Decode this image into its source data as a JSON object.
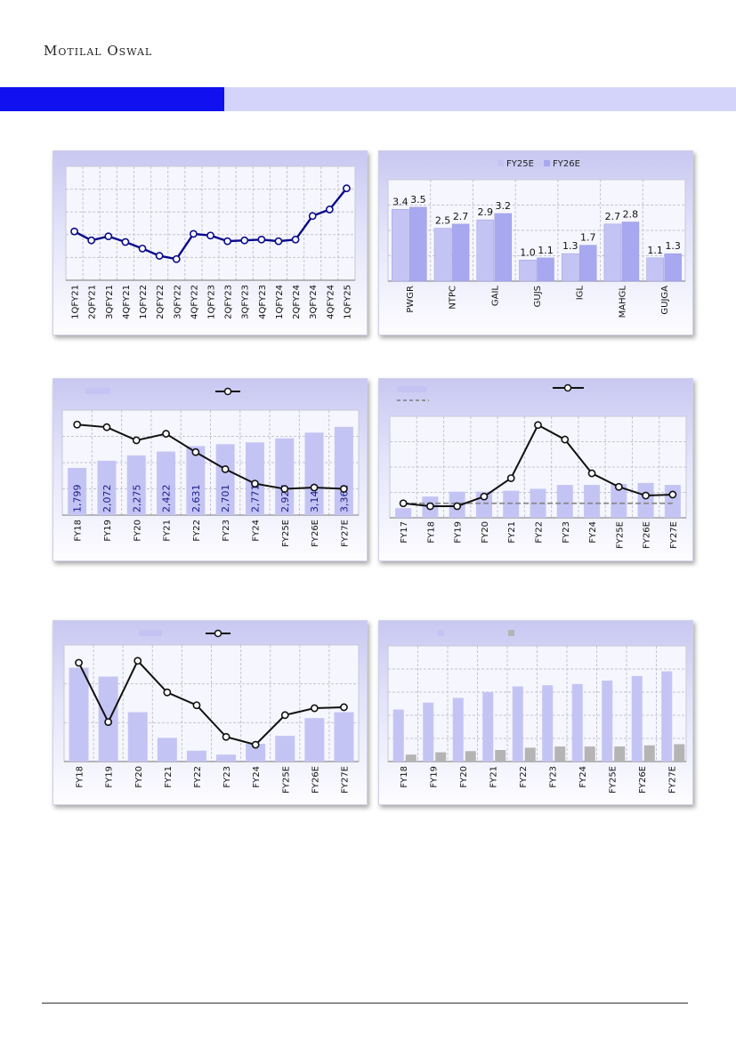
{
  "header": {
    "brand": "Motilal Oswal"
  },
  "colors": {
    "banner_dark": "#1010f0",
    "banner_light": "#d4d4fb",
    "bar": "#c4c4f4",
    "bar_dark": "#a8a8f0",
    "line_blue": "#0a0a8c",
    "line_black": "#111111",
    "bar_grey": "#b4b4b4"
  },
  "chart_data": [
    {
      "type": "line",
      "x": [
        "1QFY21",
        "2QFY21",
        "3QFY21",
        "4QFY21",
        "1QFY22",
        "2QFY22",
        "3QFY22",
        "4QFY22",
        "1QFY23",
        "2QFY23",
        "3QFY23",
        "4QFY23",
        "1QFY24",
        "2QFY24",
        "3QFY24",
        "4QFY24",
        "1QFY25"
      ],
      "values": [
        60,
        49,
        54,
        47,
        39,
        30,
        26,
        57,
        55,
        48,
        49,
        50,
        48,
        50,
        79,
        87,
        113
      ],
      "ylim": [
        0,
        140
      ],
      "grid": true
    },
    {
      "type": "bar",
      "categories": [
        "PWGR",
        "NTPC",
        "GAIL",
        "GUJS",
        "IGL",
        "MAHGL",
        "GUJGA"
      ],
      "series": [
        {
          "name": "FY25E",
          "values": [
            3.4,
            2.5,
            2.9,
            1.0,
            1.3,
            2.7,
            1.1
          ],
          "labels": [
            "3.4",
            "2.5",
            "2.9",
            "1.0",
            "1.3",
            "2.7",
            "1.1"
          ]
        },
        {
          "name": "FY26E",
          "values": [
            3.5,
            2.7,
            3.2,
            1.1,
            1.7,
            2.8,
            1.3
          ],
          "labels": [
            "3.5",
            "2.7",
            "3.2",
            "1.1",
            "1.7",
            "2.8",
            "1.3"
          ]
        }
      ],
      "legend": "top-center",
      "ylim": [
        0,
        4.8
      ],
      "grid": true
    },
    {
      "type": "bar+line",
      "categories": [
        "FY18",
        "FY19",
        "FY20",
        "FY21",
        "FY22",
        "FY23",
        "FY24",
        "FY25E",
        "FY26E",
        "FY27E"
      ],
      "bars": [
        1799,
        2072,
        2275,
        2422,
        2631,
        2701,
        2771,
        2927,
        3143,
        3362
      ],
      "bar_labels": [
        "1,799",
        "2,072",
        "2,275",
        "2,422",
        "2,631",
        "2,701",
        "2,771",
        "2,927",
        "3,143",
        "3,362"
      ],
      "line": [
        3.45,
        3.35,
        2.85,
        3.1,
        2.4,
        1.75,
        1.2,
        1.0,
        1.05,
        1.0
      ],
      "bar_ylim": [
        0,
        4000
      ],
      "line_ylim": [
        0,
        4
      ],
      "legend": "top-left",
      "grid": true
    },
    {
      "type": "bar+line",
      "categories": [
        "FY17",
        "FY18",
        "FY19",
        "FY20",
        "FY21",
        "FY22",
        "FY23",
        "FY24",
        "FY25E",
        "FY26E",
        "FY27E"
      ],
      "bars": [
        10,
        22,
        27,
        27,
        28,
        30,
        34,
        34,
        35,
        36,
        34
      ],
      "line": [
        15,
        12,
        12,
        22,
        41,
        96,
        81,
        46,
        32,
        23,
        24
      ],
      "average": 15,
      "ylim": [
        0,
        105
      ],
      "legend": "top-left",
      "grid": true
    },
    {
      "type": "bar+line",
      "categories": [
        "FY18",
        "FY19",
        "FY20",
        "FY21",
        "FY22",
        "FY23",
        "FY24",
        "FY25E",
        "FY26E",
        "FY27E"
      ],
      "bars": [
        95,
        86,
        50,
        24,
        11,
        7,
        18,
        26,
        44,
        50
      ],
      "line": [
        100,
        40,
        102,
        70,
        57,
        25,
        17,
        47,
        54,
        55
      ],
      "ylim": [
        0,
        118
      ],
      "legend": "top-center",
      "grid": true
    },
    {
      "type": "bar",
      "categories": [
        "FY18",
        "FY19",
        "FY20",
        "FY21",
        "FY22",
        "FY23",
        "FY24",
        "FY25E",
        "FY26E",
        "FY27E"
      ],
      "series": [
        {
          "values": [
            45,
            51,
            55,
            60,
            65,
            66,
            67,
            70,
            74,
            78
          ]
        },
        {
          "values": [
            6,
            8,
            9,
            10,
            12,
            13,
            13,
            13,
            14,
            15
          ]
        }
      ],
      "legend": "top-center",
      "ylim": [
        0,
        100
      ],
      "grid": true
    }
  ]
}
